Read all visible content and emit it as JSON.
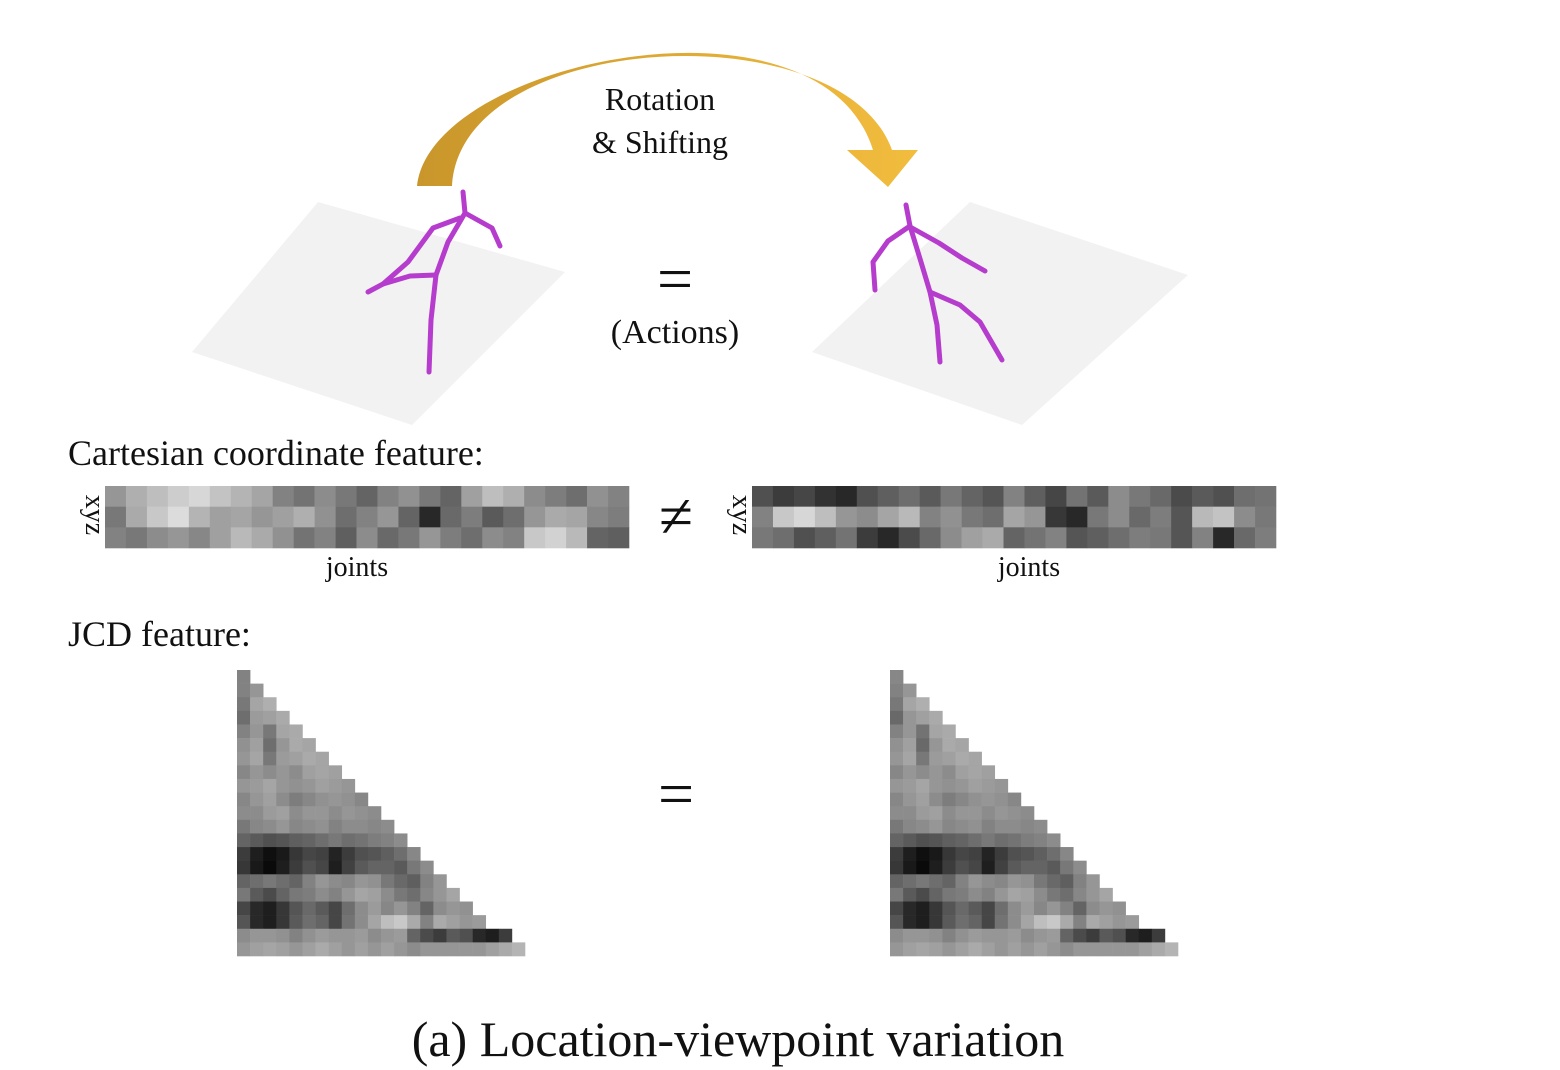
{
  "arrow": {
    "label_line1": "Rotation",
    "label_line2": "& Shifting",
    "color_start": "#c9962b",
    "color_end": "#f2bd3e"
  },
  "skeleton_color": "#b53ccc",
  "plane_color": "#f2f2f2",
  "equals_symbol": "=",
  "not_equals_symbol": "≠",
  "actions_label": "(Actions)",
  "cartesian": {
    "heading": "Cartesian coordinate feature:",
    "axis_label": "xyz",
    "xlabel": "joints",
    "left_matrix": [
      [
        150,
        175,
        190,
        205,
        215,
        195,
        180,
        165,
        130,
        115,
        140,
        120,
        100,
        130,
        145,
        120,
        100,
        160,
        190,
        175,
        140,
        125,
        110,
        145,
        130
      ],
      [
        120,
        170,
        200,
        220,
        180,
        160,
        165,
        150,
        160,
        175,
        145,
        110,
        130,
        150,
        100,
        40,
        105,
        125,
        90,
        110,
        150,
        170,
        165,
        135,
        125
      ],
      [
        130,
        120,
        140,
        150,
        135,
        160,
        185,
        170,
        145,
        115,
        130,
        95,
        140,
        105,
        120,
        150,
        125,
        110,
        140,
        130,
        200,
        210,
        185,
        100,
        95
      ]
    ],
    "right_matrix": [
      [
        80,
        60,
        70,
        50,
        40,
        80,
        95,
        110,
        90,
        120,
        100,
        85,
        130,
        95,
        70,
        115,
        90,
        140,
        120,
        105,
        75,
        90,
        80,
        110,
        115
      ],
      [
        130,
        200,
        215,
        190,
        150,
        140,
        165,
        185,
        130,
        145,
        120,
        110,
        165,
        150,
        55,
        40,
        120,
        140,
        105,
        125,
        85,
        185,
        195,
        140,
        120
      ],
      [
        120,
        110,
        80,
        95,
        115,
        60,
        40,
        75,
        105,
        140,
        160,
        170,
        100,
        115,
        130,
        85,
        95,
        110,
        125,
        120,
        85,
        130,
        40,
        105,
        125
      ]
    ]
  },
  "jcd": {
    "heading": "JCD feature:",
    "left_matrix": [
      [
        130
      ],
      [
        130,
        150
      ],
      [
        120,
        165,
        175
      ],
      [
        110,
        155,
        160,
        170
      ],
      [
        130,
        150,
        120,
        165,
        170
      ],
      [
        145,
        160,
        110,
        150,
        170,
        165
      ],
      [
        150,
        165,
        120,
        155,
        160,
        170,
        165
      ],
      [
        135,
        150,
        140,
        150,
        140,
        160,
        165,
        160
      ],
      [
        150,
        155,
        165,
        150,
        145,
        150,
        160,
        155,
        150
      ],
      [
        135,
        150,
        160,
        140,
        125,
        135,
        145,
        150,
        145,
        135
      ],
      [
        140,
        140,
        155,
        160,
        140,
        150,
        150,
        140,
        150,
        145,
        140
      ],
      [
        120,
        135,
        140,
        150,
        135,
        140,
        145,
        130,
        140,
        140,
        135,
        140
      ],
      [
        100,
        90,
        80,
        85,
        95,
        100,
        110,
        120,
        110,
        115,
        125,
        130,
        140
      ],
      [
        60,
        30,
        15,
        25,
        55,
        70,
        65,
        35,
        60,
        80,
        85,
        95,
        110,
        135
      ],
      [
        55,
        25,
        10,
        30,
        60,
        80,
        70,
        30,
        65,
        90,
        100,
        100,
        90,
        120,
        140
      ],
      [
        100,
        110,
        120,
        110,
        100,
        130,
        150,
        140,
        135,
        150,
        145,
        120,
        105,
        95,
        130,
        150
      ],
      [
        120,
        90,
        75,
        100,
        120,
        125,
        140,
        130,
        150,
        165,
        160,
        140,
        120,
        110,
        135,
        150,
        165
      ],
      [
        70,
        40,
        30,
        55,
        85,
        105,
        90,
        70,
        110,
        140,
        155,
        135,
        150,
        130,
        100,
        140,
        150,
        145
      ],
      [
        85,
        40,
        30,
        55,
        90,
        110,
        100,
        70,
        115,
        140,
        165,
        190,
        200,
        170,
        130,
        170,
        160,
        150,
        155
      ],
      [
        140,
        150,
        150,
        145,
        130,
        145,
        155,
        150,
        150,
        155,
        140,
        150,
        155,
        100,
        75,
        60,
        90,
        80,
        40,
        30,
        60
      ],
      [
        150,
        160,
        165,
        160,
        150,
        160,
        170,
        160,
        150,
        160,
        150,
        160,
        150,
        140,
        150,
        150,
        150,
        150,
        150,
        160,
        170,
        180
      ]
    ],
    "right_matrix": [
      [
        135
      ],
      [
        130,
        150
      ],
      [
        120,
        165,
        175
      ],
      [
        105,
        150,
        160,
        170
      ],
      [
        130,
        150,
        115,
        165,
        170
      ],
      [
        145,
        160,
        105,
        150,
        170,
        165
      ],
      [
        150,
        165,
        120,
        155,
        160,
        170,
        165
      ],
      [
        135,
        150,
        140,
        150,
        140,
        160,
        165,
        160
      ],
      [
        150,
        155,
        165,
        150,
        145,
        150,
        160,
        155,
        150
      ],
      [
        135,
        150,
        160,
        140,
        125,
        135,
        145,
        150,
        145,
        135
      ],
      [
        140,
        140,
        155,
        160,
        140,
        150,
        150,
        140,
        150,
        145,
        140
      ],
      [
        120,
        135,
        140,
        150,
        135,
        140,
        145,
        130,
        140,
        140,
        135,
        140
      ],
      [
        100,
        90,
        80,
        85,
        95,
        100,
        110,
        120,
        110,
        115,
        125,
        130,
        140
      ],
      [
        60,
        30,
        15,
        25,
        55,
        70,
        65,
        35,
        60,
        80,
        85,
        95,
        110,
        135
      ],
      [
        55,
        25,
        10,
        30,
        60,
        80,
        70,
        30,
        65,
        90,
        100,
        100,
        90,
        120,
        140
      ],
      [
        100,
        110,
        120,
        110,
        100,
        130,
        150,
        140,
        135,
        150,
        145,
        120,
        105,
        95,
        130,
        150
      ],
      [
        120,
        90,
        75,
        100,
        120,
        125,
        140,
        130,
        150,
        165,
        160,
        140,
        120,
        110,
        135,
        150,
        165
      ],
      [
        70,
        40,
        30,
        55,
        85,
        105,
        90,
        70,
        110,
        140,
        155,
        135,
        150,
        130,
        100,
        140,
        150,
        145
      ],
      [
        85,
        40,
        30,
        55,
        90,
        110,
        100,
        70,
        115,
        140,
        165,
        190,
        200,
        170,
        130,
        170,
        160,
        150,
        155
      ],
      [
        140,
        150,
        150,
        145,
        130,
        145,
        155,
        150,
        150,
        155,
        140,
        150,
        155,
        100,
        75,
        60,
        90,
        80,
        40,
        30,
        60
      ],
      [
        150,
        160,
        165,
        160,
        150,
        160,
        170,
        160,
        150,
        160,
        150,
        160,
        150,
        140,
        150,
        150,
        150,
        150,
        150,
        160,
        170,
        180
      ]
    ]
  },
  "caption": "(a) Location-viewpoint variation"
}
